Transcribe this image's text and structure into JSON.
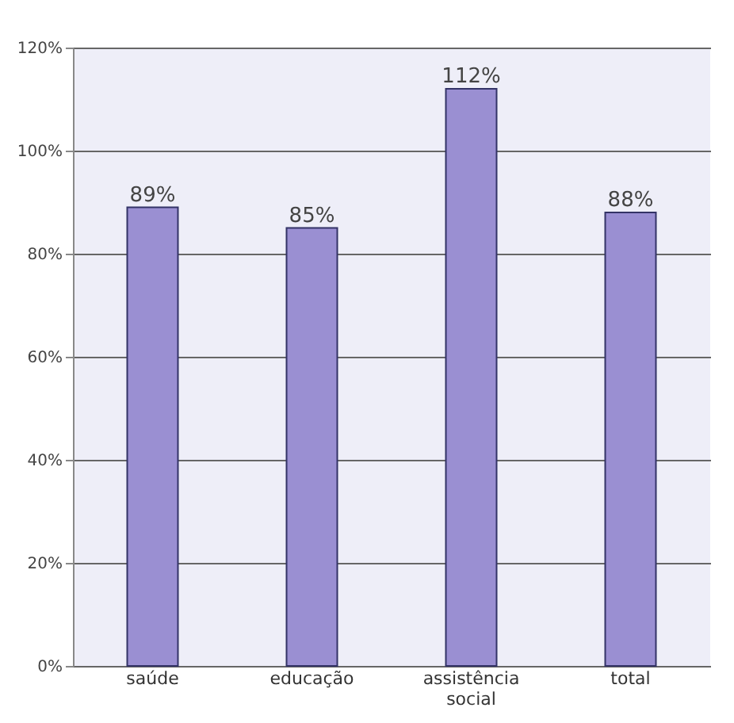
{
  "chart_data": {
    "type": "bar",
    "categories": [
      "saúde",
      "educação",
      "assistência social",
      "total"
    ],
    "values": [
      89,
      85,
      112,
      88
    ],
    "color": "#9a8fd2",
    "value_labels": [
      "89%",
      "85%",
      "112%",
      "88%"
    ],
    "ylim": [
      0,
      120
    ],
    "yticks": [
      {
        "value": 0,
        "label": "0%"
      },
      {
        "value": 20,
        "label": "20%"
      },
      {
        "value": 40,
        "label": "40%"
      },
      {
        "value": 60,
        "label": "60%"
      },
      {
        "value": 80,
        "label": "80%"
      },
      {
        "value": 100,
        "label": "100%"
      },
      {
        "value": 120,
        "label": "120%"
      }
    ],
    "grid": "y"
  }
}
